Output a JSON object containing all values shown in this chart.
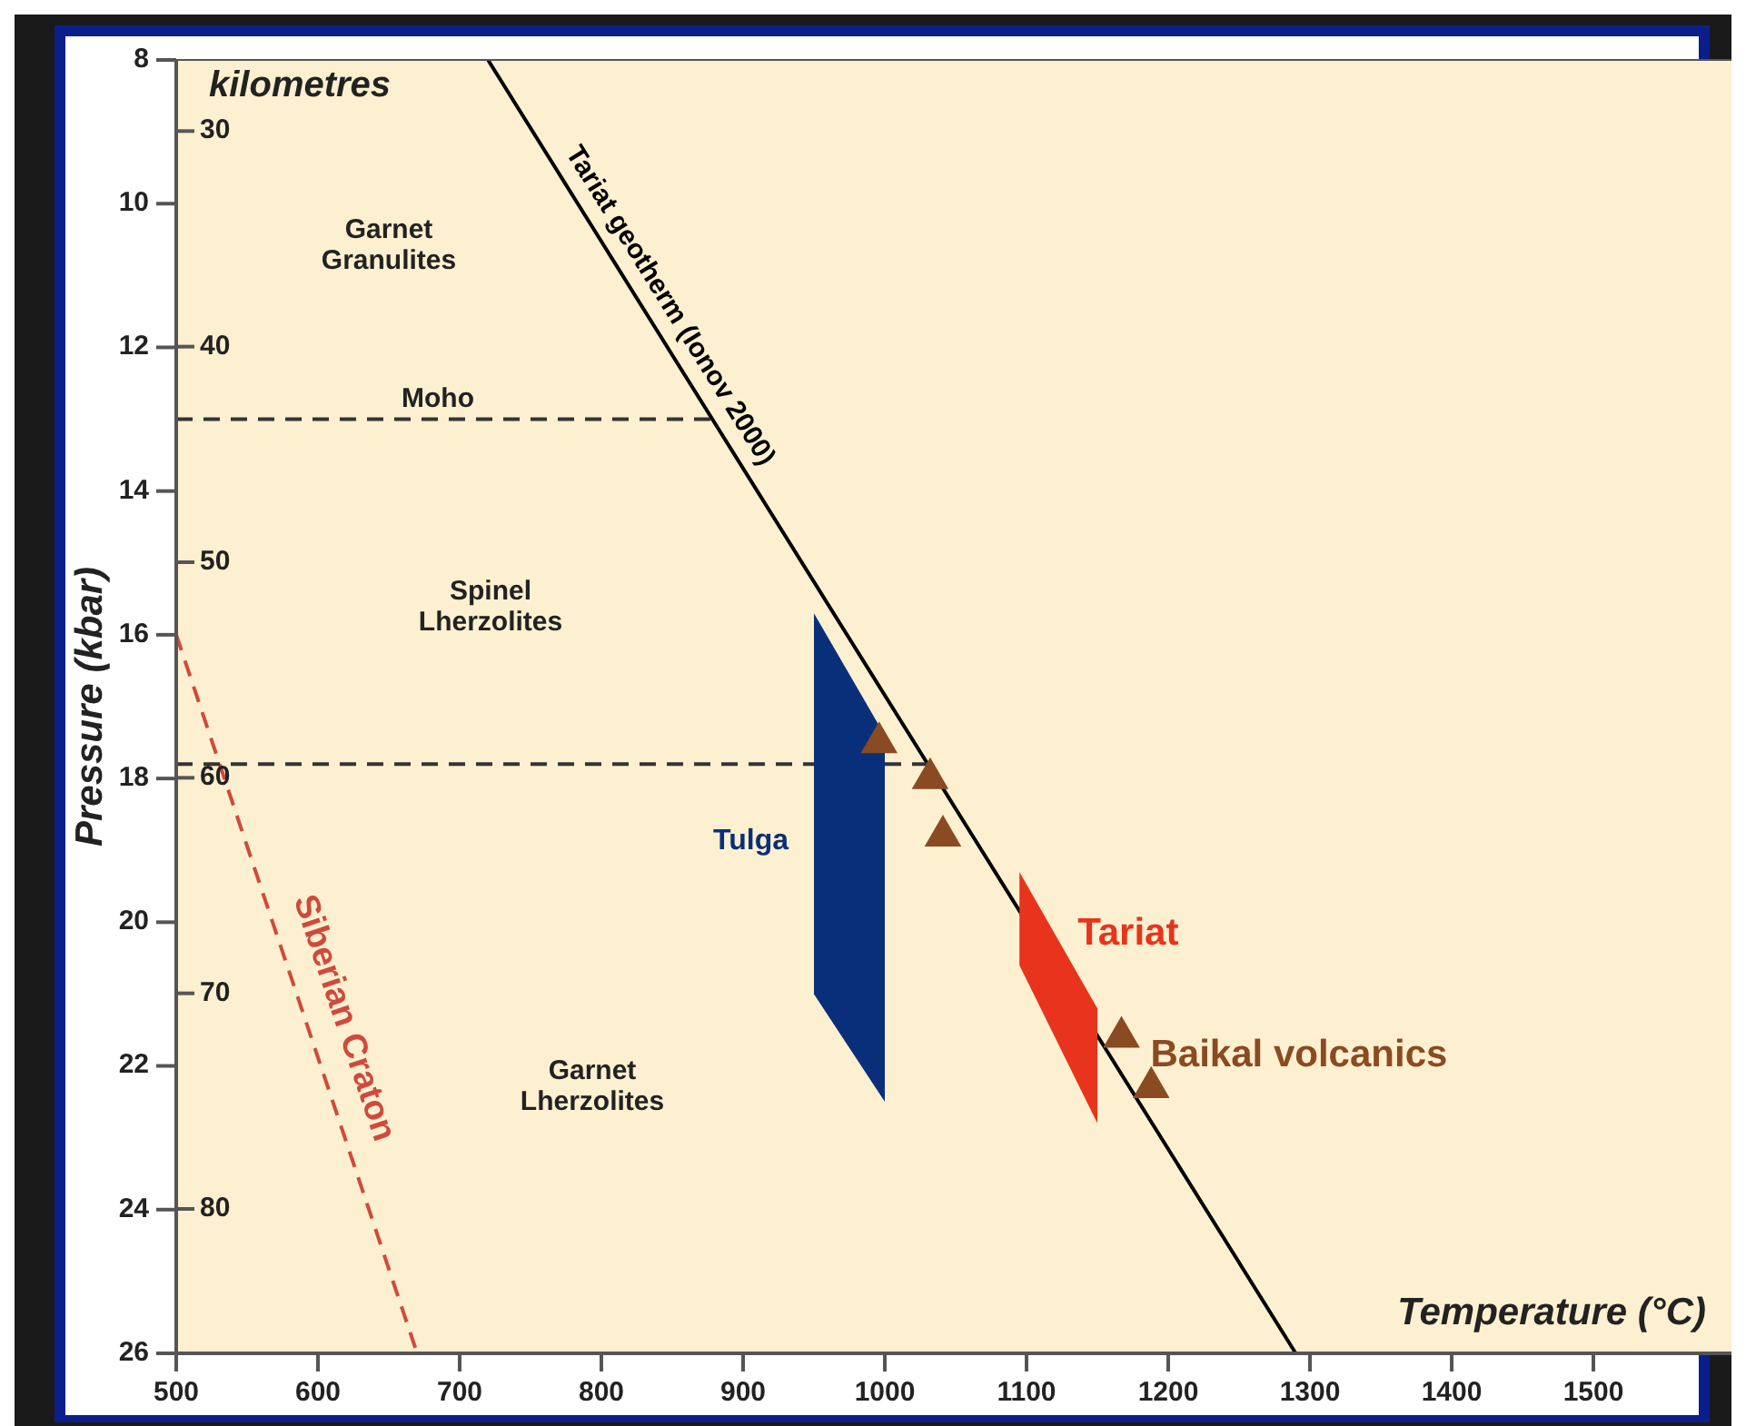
{
  "chart_data": {
    "type": "line",
    "xlabel": "Temperature (°C)",
    "ylabel": "Pressure (kbar)",
    "y2label": "kilometres",
    "xlim": [
      500,
      1600
    ],
    "xticks": [
      500,
      600,
      700,
      800,
      900,
      1000,
      1100,
      1200,
      1300,
      1400,
      1500
    ],
    "ylim": [
      26,
      8
    ],
    "yticks": [
      8,
      10,
      12,
      14,
      16,
      18,
      20,
      22,
      24,
      26
    ],
    "y2lim": [
      86.7,
      26.7
    ],
    "y2ticks": [
      30,
      40,
      50,
      60,
      70,
      80
    ],
    "grid": false,
    "series": [
      {
        "name": "Tariat geotherm (Ionov 2000)",
        "color": "#000000",
        "line_style": "solid",
        "x": [
          720,
          1290
        ],
        "values": [
          8,
          26
        ]
      },
      {
        "name": "Siberian Craton",
        "type": "line",
        "color": "#d04a3c",
        "line_style": "dashed",
        "x": [
          500,
          670
        ],
        "values": [
          16,
          26
        ]
      },
      {
        "type": "line",
        "color": "#333333",
        "line_style": "dashed",
        "x": [
          500,
          878
        ],
        "values": [
          13,
          13
        ]
      },
      {
        "type": "line",
        "color": "#333333",
        "line_style": "dashed",
        "x": [
          500,
          1030
        ],
        "values": [
          17.8,
          17.8
        ]
      },
      {
        "name": "Tulga",
        "type": "area",
        "color": "#0a2f7a",
        "x": [
          950,
          1000,
          1000,
          950
        ],
        "values": [
          15.7,
          17.4,
          22.5,
          21
        ]
      },
      {
        "name": "Tariat",
        "type": "area",
        "color": "#e8341c",
        "x": [
          1095,
          1150,
          1150,
          1095
        ],
        "values": [
          19.3,
          21.2,
          22.8,
          20.6
        ]
      },
      {
        "name": "Baikal volcanics",
        "type": "scatter",
        "marker": "triangle",
        "color": "#8a4a22",
        "x": [
          996,
          1032,
          1041,
          1167,
          1188
        ],
        "values": [
          17.5,
          18,
          18.8,
          21.6,
          22.3
        ]
      }
    ],
    "annotations": [
      "Garnet Granulites",
      "Moho",
      "Spinel Lherzolites",
      "Garnet Lherzolites"
    ]
  }
}
